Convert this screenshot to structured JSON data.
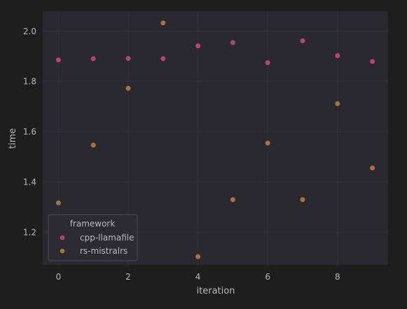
{
  "chart_data": {
    "type": "scatter",
    "title": "",
    "xlabel": "iteration",
    "ylabel": "time",
    "xlim": [
      -0.45,
      9.45
    ],
    "ylim": [
      1.07,
      2.08
    ],
    "xticks": [
      0,
      2,
      4,
      6,
      8
    ],
    "yticks": [
      1.2,
      1.4,
      1.6,
      1.8,
      2.0
    ],
    "xtick_labels": [
      "0",
      "2",
      "4",
      "6",
      "8"
    ],
    "ytick_labels": [
      "1.2",
      "1.4",
      "1.6",
      "1.8",
      "2.0"
    ],
    "grid": true,
    "legend": {
      "title": "framework",
      "placement": "lower-left"
    },
    "series": [
      {
        "name": "cpp-llamafile",
        "color": "#b8456e",
        "x": [
          0,
          1,
          2,
          3,
          4,
          5,
          6,
          7,
          8,
          9
        ],
        "y": [
          1.886,
          1.891,
          1.892,
          1.891,
          1.942,
          1.955,
          1.875,
          1.962,
          1.903,
          1.88
        ]
      },
      {
        "name": "rs-mistralrs",
        "color": "#a8733f",
        "x": [
          0,
          1,
          2,
          3,
          4,
          5,
          6,
          7,
          8,
          9
        ],
        "y": [
          1.317,
          1.547,
          1.773,
          2.033,
          1.103,
          1.33,
          1.555,
          1.33,
          1.712,
          1.456
        ]
      }
    ],
    "colors": {
      "figure_bg": "#1e1e1f",
      "axes_bg": "#29292f",
      "grid": "#323238",
      "text": "#b9b9bd",
      "legend_bg": "#2b2b31",
      "legend_border": "#4a4a50"
    }
  }
}
